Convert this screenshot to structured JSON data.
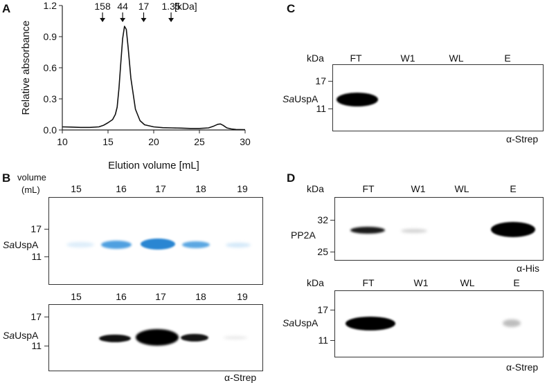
{
  "panels": {
    "A": "A",
    "B": "B",
    "C": "C",
    "D": "D"
  },
  "chart_data": {
    "type": "line",
    "ylabel": "Relative absorbance",
    "xlabel": "Elution volume [mL]",
    "xlim": [
      10,
      30
    ],
    "ylim": [
      0,
      1.2
    ],
    "x_ticks": [
      10,
      15,
      20,
      25,
      30
    ],
    "y_ticks": [
      0.0,
      0.3,
      0.6,
      0.9,
      1.2
    ],
    "x_tick_labels": [
      "10",
      "15",
      "20",
      "25",
      "30"
    ],
    "y_tick_labels": [
      "0.0",
      "0.3",
      "0.6",
      "0.9",
      "1.2"
    ],
    "markers": [
      {
        "label": "158",
        "x": 14.4
      },
      {
        "label": "44",
        "x": 16.6
      },
      {
        "label": "17",
        "x": 18.9
      },
      {
        "label": "1.35",
        "x": 21.9
      }
    ],
    "marker_unit": "[kDa]",
    "series": [
      {
        "x": [
          10,
          11,
          12,
          13,
          14,
          14.5,
          15,
          15.5,
          15.8,
          16.0,
          16.2,
          16.4,
          16.6,
          16.8,
          17.0,
          17.2,
          17.5,
          18.0,
          18.5,
          19,
          20,
          21,
          22,
          23,
          24,
          25,
          26,
          26.5,
          27.0,
          27.3,
          27.6,
          28.0,
          28.5,
          29,
          30
        ],
        "y": [
          0.03,
          0.028,
          0.025,
          0.025,
          0.03,
          0.045,
          0.07,
          0.1,
          0.15,
          0.22,
          0.4,
          0.65,
          0.88,
          1.0,
          0.97,
          0.8,
          0.5,
          0.2,
          0.09,
          0.05,
          0.03,
          0.022,
          0.02,
          0.018,
          0.015,
          0.015,
          0.02,
          0.035,
          0.055,
          0.058,
          0.045,
          0.02,
          0.01,
          0.005,
          0.003
        ]
      }
    ]
  },
  "blotB": {
    "volume_label_1": "volume",
    "volume_label_2": "(mL)",
    "lanes": [
      "15",
      "16",
      "17",
      "18",
      "19"
    ],
    "lanes2": [
      "15",
      "16",
      "17",
      "18",
      "19"
    ],
    "mw_top": "17",
    "mw_bottom": "11",
    "mw2_top": "17",
    "mw2_bottom": "11",
    "protein_prefix": "Sa",
    "protein_suffix": "UspA",
    "protein2_prefix": "Sa",
    "protein2_suffix": "UspA",
    "antibody": "α-Strep",
    "stain_color": "#2f8fd6"
  },
  "blotC": {
    "kda": "kDa",
    "lanes": [
      "FT",
      "W1",
      "WL",
      "E"
    ],
    "mw_top": "17",
    "mw_bottom": "11",
    "protein_prefix": "Sa",
    "protein_suffix": "UspA",
    "antibody": "α-Strep"
  },
  "blotD": {
    "kda1": "kDa",
    "lanes1": [
      "FT",
      "W1",
      "WL",
      "E"
    ],
    "mw1_top": "32",
    "mw1_bottom": "25",
    "protein1": "PP2A",
    "antibody1": "α-His",
    "kda2": "kDa",
    "lanes2": [
      "FT",
      "W1",
      "WL",
      "E"
    ],
    "mw2_top": "17",
    "mw2_bottom": "11",
    "protein2_prefix": "Sa",
    "protein2_suffix": "UspA",
    "antibody2": "α-Strep"
  }
}
